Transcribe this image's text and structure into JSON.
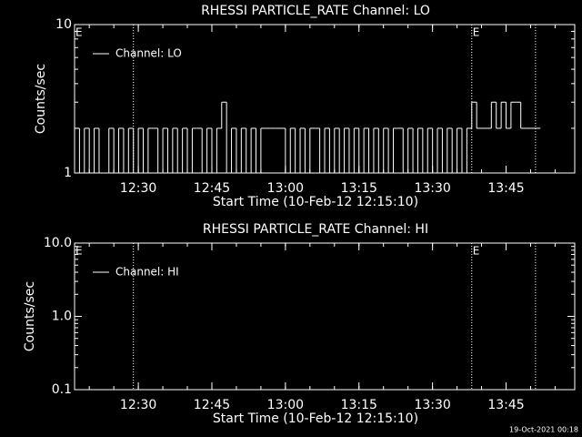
{
  "chart_data": [
    {
      "type": "line",
      "title": "RHESSI PARTICLE_RATE Channel: LO",
      "xlabel": "Start Time (10-Feb-12 12:15:10)",
      "ylabel": "Counts/sec",
      "log_y": true,
      "ylim": [
        1,
        10
      ],
      "yticks": [
        1,
        10
      ],
      "xlim": [
        "12:17",
        "13:59"
      ],
      "xticks": [
        "12:30",
        "12:45",
        "13:00",
        "13:15",
        "13:30",
        "13:45"
      ],
      "vlines": [
        "12:29",
        "13:38",
        "13:51"
      ],
      "annotations": [
        {
          "text": "E",
          "x": "12:17"
        },
        {
          "text": "E",
          "x": "13:38"
        }
      ],
      "legend": "upper left",
      "x": [
        "12:17",
        "12:18",
        "12:19",
        "12:20",
        "12:21",
        "12:22",
        "12:23",
        "12:24",
        "12:25",
        "12:26",
        "12:27",
        "12:28",
        "12:29",
        "12:30",
        "12:31",
        "12:32",
        "12:33",
        "12:34",
        "12:35",
        "12:36",
        "12:37",
        "12:38",
        "12:39",
        "12:40",
        "12:41",
        "12:42",
        "12:43",
        "12:44",
        "12:45",
        "12:46",
        "12:47",
        "12:48",
        "12:49",
        "12:50",
        "12:51",
        "12:52",
        "12:53",
        "12:54",
        "12:55",
        "12:56",
        "12:57",
        "12:58",
        "12:59",
        "13:00",
        "13:01",
        "13:02",
        "13:03",
        "13:04",
        "13:05",
        "13:06",
        "13:07",
        "13:08",
        "13:09",
        "13:10",
        "13:11",
        "13:12",
        "13:13",
        "13:14",
        "13:15",
        "13:16",
        "13:17",
        "13:18",
        "13:19",
        "13:20",
        "13:21",
        "13:22",
        "13:23",
        "13:24",
        "13:25",
        "13:26",
        "13:27",
        "13:28",
        "13:29",
        "13:30",
        "13:31",
        "13:32",
        "13:33",
        "13:34",
        "13:35",
        "13:36",
        "13:37",
        "13:38",
        "13:39",
        "13:40",
        "13:41",
        "13:42",
        "13:43",
        "13:44",
        "13:45",
        "13:46",
        "13:47",
        "13:48",
        "13:49",
        "13:50",
        "13:51"
      ],
      "series": [
        {
          "name": "Channel: LO",
          "color": "#ffffff",
          "values": [
            2,
            1,
            2,
            1,
            2,
            1,
            1,
            2,
            1,
            2,
            1,
            2,
            1,
            2,
            1,
            2,
            2,
            1,
            2,
            1,
            2,
            1,
            2,
            1,
            2,
            2,
            1,
            2,
            1,
            2,
            3,
            1,
            2,
            1,
            2,
            1,
            2,
            1,
            2,
            2,
            2,
            2,
            2,
            1,
            2,
            1,
            2,
            1,
            2,
            2,
            1,
            2,
            1,
            2,
            1,
            2,
            1,
            2,
            1,
            2,
            1,
            2,
            1,
            2,
            1,
            2,
            2,
            1,
            2,
            1,
            2,
            1,
            2,
            1,
            2,
            1,
            2,
            1,
            2,
            1,
            2,
            3,
            2,
            2,
            2,
            3,
            2,
            3,
            2,
            3,
            3,
            2,
            2,
            2,
            2
          ]
        }
      ]
    },
    {
      "type": "line",
      "title": "RHESSI PARTICLE_RATE Channel: HI",
      "xlabel": "Start Time (10-Feb-12 12:15:10)",
      "ylabel": "Counts/sec",
      "log_y": true,
      "ylim": [
        0.1,
        10
      ],
      "yticks": [
        0.1,
        {
          "value": 1,
          "label": "1.0"
        },
        {
          "value": 10,
          "label": "10.0"
        }
      ],
      "xlim": [
        "12:17",
        "13:59"
      ],
      "xticks": [
        "12:30",
        "12:45",
        "13:00",
        "13:15",
        "13:30",
        "13:45"
      ],
      "vlines": [
        "12:29",
        "13:38",
        "13:51"
      ],
      "annotations": [
        {
          "text": "E",
          "x": "12:17"
        },
        {
          "text": "E",
          "x": "13:38"
        }
      ],
      "legend": "upper left",
      "series": [
        {
          "name": "Channel: HI",
          "color": "#ffffff"
        }
      ]
    }
  ],
  "footer": "19-Oct-2021 00:18"
}
